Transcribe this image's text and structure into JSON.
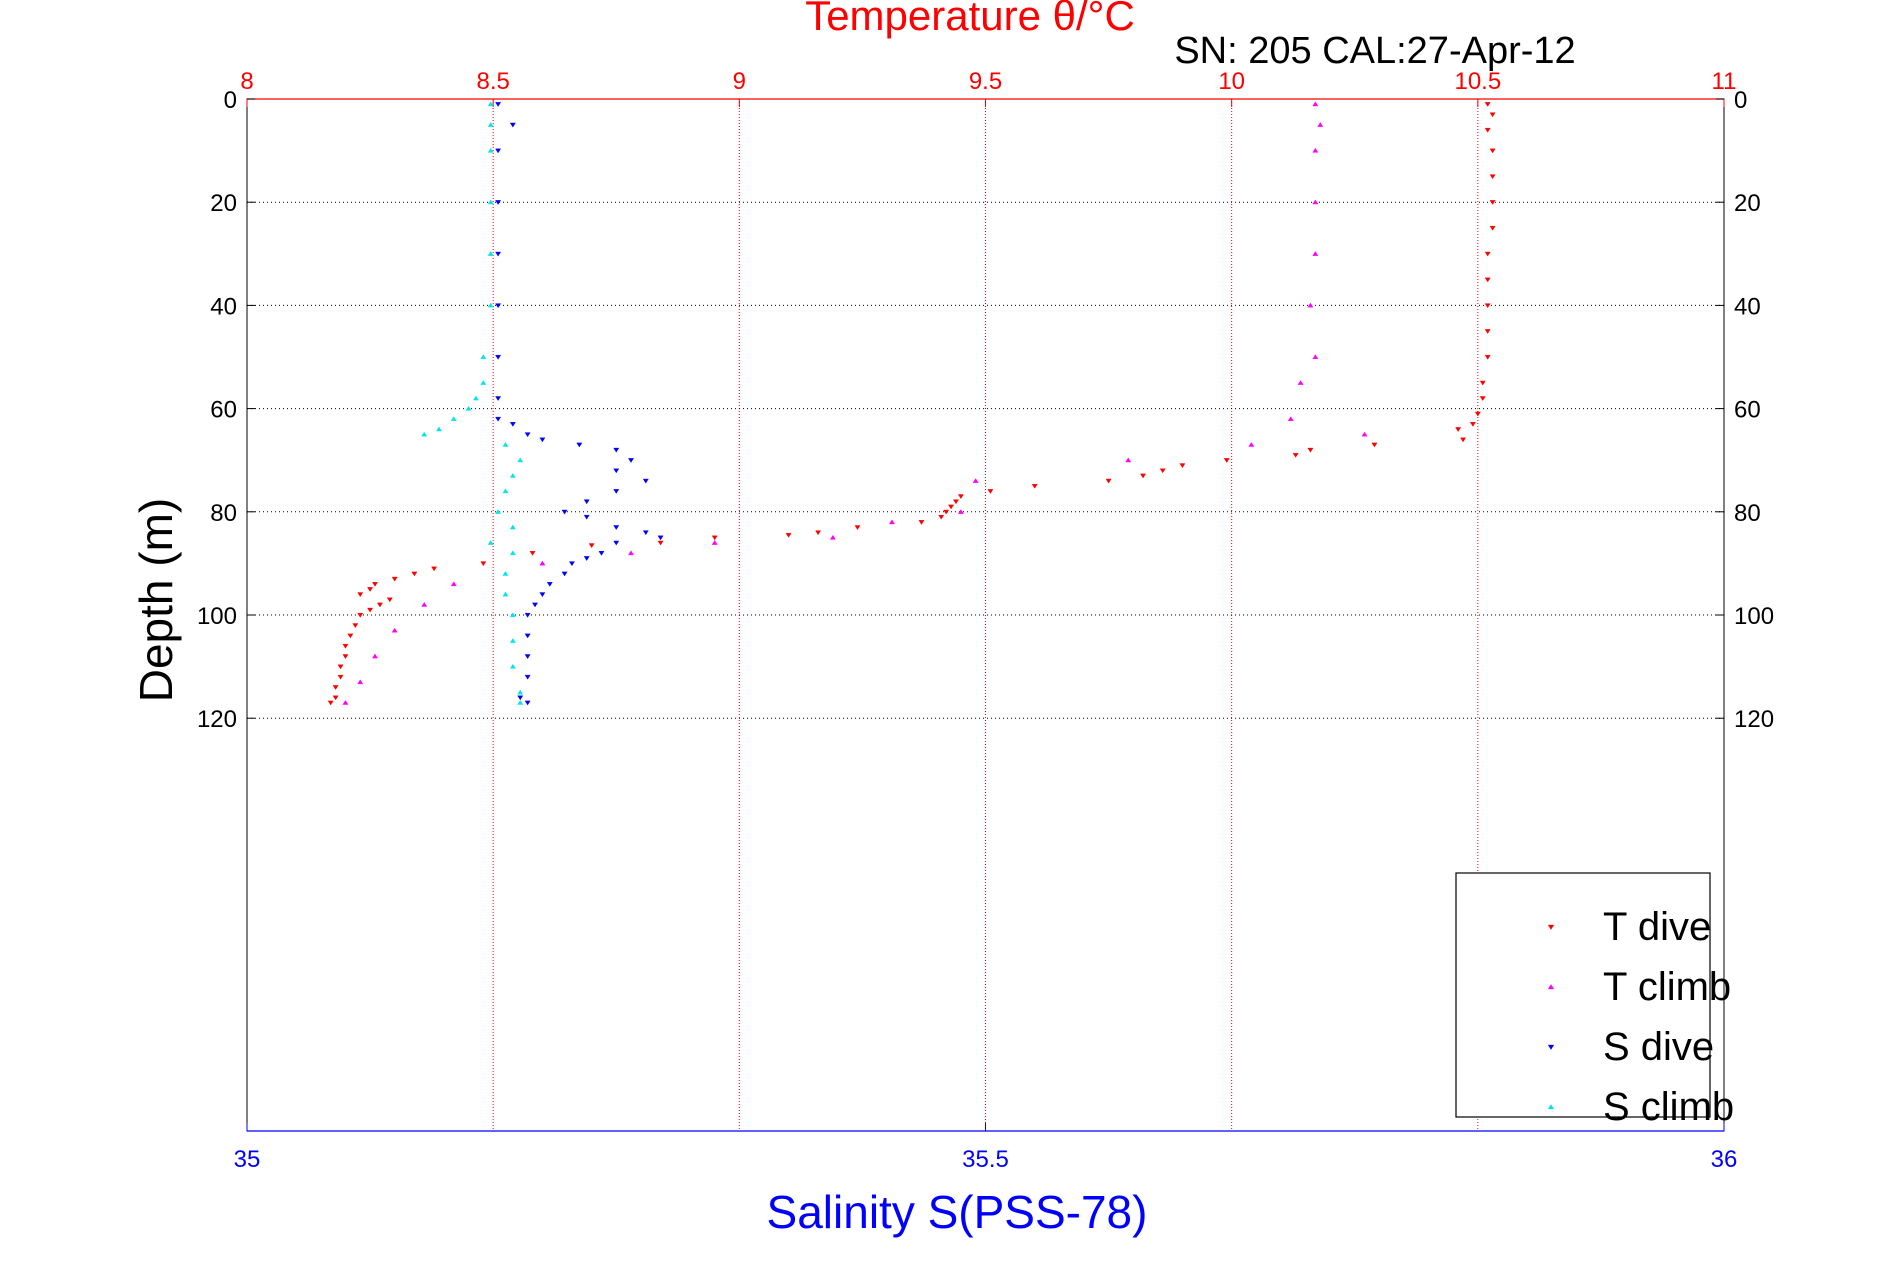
{
  "chart_data": {
    "type": "scatter",
    "title": "Temperature θ/°C",
    "subtitle": "SN: 205  CAL:27-Apr-12",
    "xlabel": "Salinity S(PSS-78)",
    "ylabel": "Depth (m)",
    "x_top": {
      "label": "Temperature θ/°C",
      "lim": [
        8,
        11
      ],
      "ticks": [
        "8",
        "8.5",
        "9",
        "9.5",
        "10",
        "10.5",
        "11"
      ]
    },
    "x_bottom": {
      "label": "Salinity S(PSS-78)",
      "lim": [
        35,
        36
      ],
      "ticks": [
        "35",
        "35.5",
        "36"
      ]
    },
    "y": {
      "label": "Depth (m)",
      "lim": [
        0,
        200
      ],
      "reversed": true,
      "ticks": [
        "0",
        "20",
        "40",
        "60",
        "80",
        "100",
        "120"
      ]
    },
    "grid": true,
    "legend": {
      "position": "bottom-right",
      "entries": [
        "T dive",
        "T climb",
        "S dive",
        "S climb"
      ]
    },
    "colors": {
      "T dive": "#ff0000",
      "T climb": "#ff00ff",
      "S dive": "#0000ff",
      "S climb": "#00e5ee",
      "top_axis": "#ff0000",
      "bottom_axis": "#0000ff"
    },
    "series": [
      {
        "name": "T dive",
        "axis": "top",
        "marker": "triangle-down",
        "points": [
          [
            10.52,
            1
          ],
          [
            10.53,
            3
          ],
          [
            10.52,
            6
          ],
          [
            10.53,
            10
          ],
          [
            10.53,
            15
          ],
          [
            10.53,
            20
          ],
          [
            10.53,
            25
          ],
          [
            10.52,
            30
          ],
          [
            10.52,
            35
          ],
          [
            10.52,
            40
          ],
          [
            10.52,
            45
          ],
          [
            10.52,
            50
          ],
          [
            10.51,
            55
          ],
          [
            10.51,
            58
          ],
          [
            10.5,
            61
          ],
          [
            10.49,
            63
          ],
          [
            10.46,
            64
          ],
          [
            10.47,
            66
          ],
          [
            10.29,
            67
          ],
          [
            10.16,
            68
          ],
          [
            10.13,
            69
          ],
          [
            9.99,
            70
          ],
          [
            9.9,
            71
          ],
          [
            9.86,
            72
          ],
          [
            9.82,
            73
          ],
          [
            9.75,
            74
          ],
          [
            9.6,
            75
          ],
          [
            9.51,
            76
          ],
          [
            9.45,
            77
          ],
          [
            9.44,
            78
          ],
          [
            9.43,
            79
          ],
          [
            9.42,
            80
          ],
          [
            9.41,
            81
          ],
          [
            9.37,
            82
          ],
          [
            9.24,
            83
          ],
          [
            9.16,
            84
          ],
          [
            9.1,
            84.5
          ],
          [
            8.95,
            85
          ],
          [
            8.84,
            86
          ],
          [
            8.7,
            86.5
          ],
          [
            8.58,
            88
          ],
          [
            8.48,
            90
          ],
          [
            8.38,
            91
          ],
          [
            8.34,
            92
          ],
          [
            8.3,
            93
          ],
          [
            8.26,
            94
          ],
          [
            8.25,
            95
          ],
          [
            8.23,
            96
          ],
          [
            8.29,
            97
          ],
          [
            8.27,
            98
          ],
          [
            8.25,
            99
          ],
          [
            8.23,
            100
          ],
          [
            8.22,
            102
          ],
          [
            8.21,
            104
          ],
          [
            8.2,
            106
          ],
          [
            8.2,
            108
          ],
          [
            8.19,
            110
          ],
          [
            8.19,
            112
          ],
          [
            8.18,
            114
          ],
          [
            8.18,
            116
          ],
          [
            8.17,
            117
          ]
        ]
      },
      {
        "name": "T climb",
        "axis": "top",
        "marker": "triangle-up",
        "points": [
          [
            10.17,
            1
          ],
          [
            10.18,
            5
          ],
          [
            10.17,
            10
          ],
          [
            10.17,
            20
          ],
          [
            10.17,
            30
          ],
          [
            10.16,
            40
          ],
          [
            10.17,
            50
          ],
          [
            10.14,
            55
          ],
          [
            10.12,
            62
          ],
          [
            10.27,
            65
          ],
          [
            10.04,
            67
          ],
          [
            9.79,
            70
          ],
          [
            9.48,
            74
          ],
          [
            9.45,
            80
          ],
          [
            9.31,
            82
          ],
          [
            9.19,
            85
          ],
          [
            8.95,
            86
          ],
          [
            8.78,
            88
          ],
          [
            8.6,
            90
          ],
          [
            8.42,
            94
          ],
          [
            8.36,
            98
          ],
          [
            8.3,
            103
          ],
          [
            8.26,
            108
          ],
          [
            8.23,
            113
          ],
          [
            8.2,
            117
          ]
        ]
      },
      {
        "name": "S dive",
        "axis": "bottom",
        "marker": "triangle-down",
        "points": [
          [
            35.17,
            1
          ],
          [
            35.18,
            5
          ],
          [
            35.17,
            10
          ],
          [
            35.17,
            20
          ],
          [
            35.17,
            30
          ],
          [
            35.17,
            40
          ],
          [
            35.17,
            50
          ],
          [
            35.17,
            58
          ],
          [
            35.17,
            62
          ],
          [
            35.18,
            63
          ],
          [
            35.19,
            65
          ],
          [
            35.2,
            66
          ],
          [
            35.225,
            67
          ],
          [
            35.25,
            68
          ],
          [
            35.26,
            70
          ],
          [
            35.25,
            72
          ],
          [
            35.27,
            74
          ],
          [
            35.25,
            76
          ],
          [
            35.23,
            78
          ],
          [
            35.215,
            80
          ],
          [
            35.23,
            81
          ],
          [
            35.25,
            83
          ],
          [
            35.27,
            84
          ],
          [
            35.28,
            85
          ],
          [
            35.25,
            86
          ],
          [
            35.24,
            88
          ],
          [
            35.23,
            89
          ],
          [
            35.22,
            90
          ],
          [
            35.215,
            92
          ],
          [
            35.205,
            94
          ],
          [
            35.2,
            96
          ],
          [
            35.195,
            98
          ],
          [
            35.19,
            100
          ],
          [
            35.19,
            104
          ],
          [
            35.19,
            108
          ],
          [
            35.19,
            112
          ],
          [
            35.185,
            116
          ],
          [
            35.19,
            117
          ]
        ]
      },
      {
        "name": "S climb",
        "axis": "bottom",
        "marker": "triangle-up",
        "points": [
          [
            35.165,
            1
          ],
          [
            35.165,
            5
          ],
          [
            35.165,
            10
          ],
          [
            35.165,
            20
          ],
          [
            35.165,
            30
          ],
          [
            35.165,
            40
          ],
          [
            35.16,
            50
          ],
          [
            35.16,
            55
          ],
          [
            35.155,
            58
          ],
          [
            35.15,
            60
          ],
          [
            35.14,
            62
          ],
          [
            35.13,
            64
          ],
          [
            35.12,
            65
          ],
          [
            35.175,
            67
          ],
          [
            35.185,
            70
          ],
          [
            35.18,
            73
          ],
          [
            35.175,
            76
          ],
          [
            35.17,
            80
          ],
          [
            35.18,
            83
          ],
          [
            35.165,
            86
          ],
          [
            35.18,
            88
          ],
          [
            35.175,
            92
          ],
          [
            35.175,
            96
          ],
          [
            35.18,
            100
          ],
          [
            35.18,
            105
          ],
          [
            35.18,
            110
          ],
          [
            35.185,
            115
          ],
          [
            35.185,
            117
          ]
        ]
      }
    ]
  }
}
